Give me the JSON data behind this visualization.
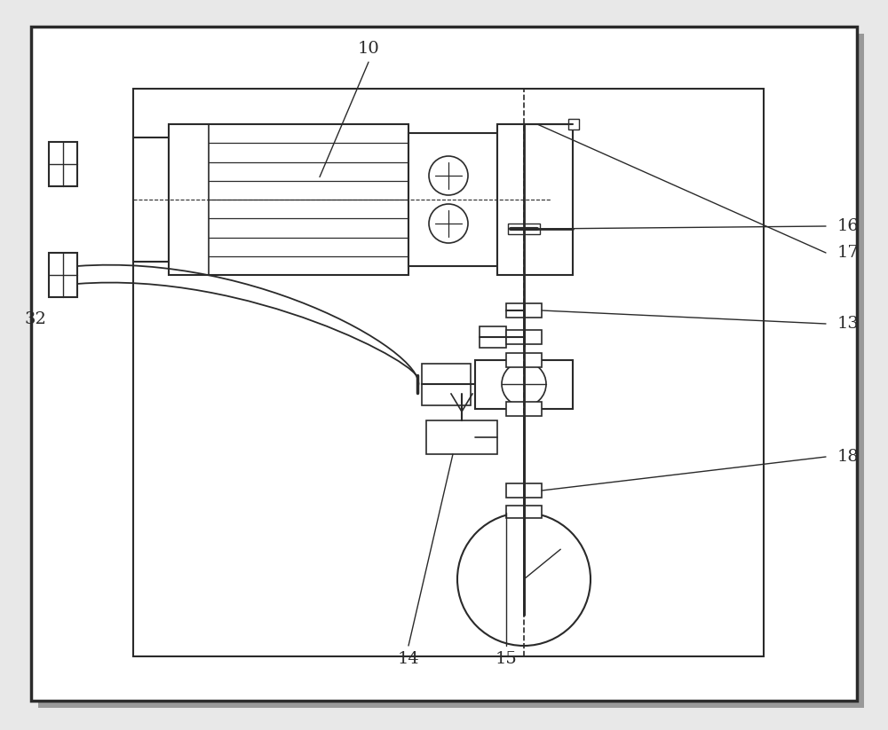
{
  "bg_color": "#e8e8e8",
  "line_color": "#2a2a2a",
  "white": "#ffffff",
  "fig_width": 10.0,
  "fig_height": 8.23,
  "dpi": 100
}
